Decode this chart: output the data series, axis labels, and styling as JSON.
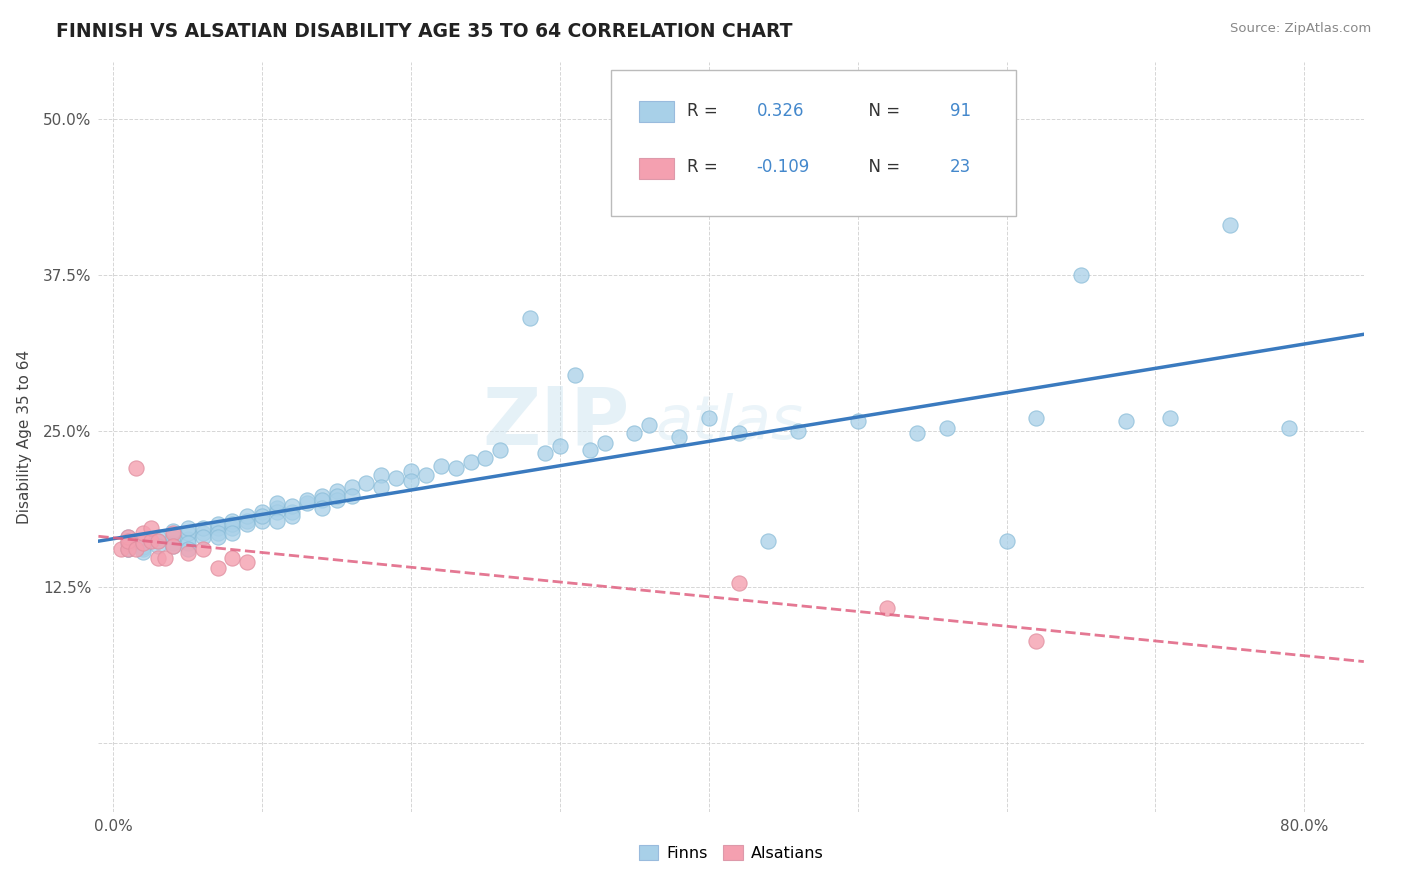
{
  "title": "FINNISH VS ALSATIAN DISABILITY AGE 35 TO 64 CORRELATION CHART",
  "source": "Source: ZipAtlas.com",
  "ylabel": "Disability Age 35 to 64",
  "x_ticks": [
    0.0,
    0.1,
    0.2,
    0.3,
    0.4,
    0.5,
    0.6,
    0.7,
    0.8
  ],
  "x_tick_labels": [
    "0.0%",
    "",
    "",
    "",
    "",
    "",
    "",
    "",
    "80.0%"
  ],
  "y_ticks": [
    0.0,
    0.125,
    0.25,
    0.375,
    0.5
  ],
  "y_tick_labels": [
    "",
    "12.5%",
    "25.0%",
    "37.5%",
    "50.0%"
  ],
  "xlim": [
    -0.01,
    0.84
  ],
  "ylim": [
    -0.055,
    0.545
  ],
  "legend_finn_r": "0.326",
  "legend_finn_n": "91",
  "legend_als_r": "-0.109",
  "legend_als_n": "23",
  "finn_color": "#a8d0e8",
  "als_color": "#f4a0b0",
  "finn_line_color": "#3a7abf",
  "als_line_color": "#e06080",
  "watermark1": "ZIP",
  "watermark2": "atlas",
  "finns_x": [
    0.01,
    0.01,
    0.01,
    0.01,
    0.01,
    0.02,
    0.02,
    0.02,
    0.02,
    0.02,
    0.03,
    0.03,
    0.03,
    0.04,
    0.04,
    0.04,
    0.04,
    0.05,
    0.05,
    0.05,
    0.05,
    0.05,
    0.06,
    0.06,
    0.06,
    0.07,
    0.07,
    0.07,
    0.07,
    0.08,
    0.08,
    0.08,
    0.08,
    0.09,
    0.09,
    0.09,
    0.1,
    0.1,
    0.1,
    0.11,
    0.11,
    0.11,
    0.11,
    0.12,
    0.12,
    0.12,
    0.13,
    0.13,
    0.14,
    0.14,
    0.14,
    0.15,
    0.15,
    0.15,
    0.16,
    0.16,
    0.17,
    0.18,
    0.18,
    0.19,
    0.2,
    0.2,
    0.21,
    0.22,
    0.23,
    0.24,
    0.25,
    0.26,
    0.28,
    0.29,
    0.3,
    0.31,
    0.32,
    0.33,
    0.35,
    0.36,
    0.38,
    0.4,
    0.42,
    0.44,
    0.46,
    0.5,
    0.54,
    0.56,
    0.6,
    0.62,
    0.65,
    0.68,
    0.71,
    0.75,
    0.79
  ],
  "finns_y": [
    0.155,
    0.16,
    0.165,
    0.155,
    0.16,
    0.155,
    0.158,
    0.162,
    0.157,
    0.153,
    0.162,
    0.165,
    0.158,
    0.16,
    0.165,
    0.17,
    0.158,
    0.163,
    0.168,
    0.172,
    0.16,
    0.155,
    0.168,
    0.172,
    0.165,
    0.172,
    0.175,
    0.168,
    0.165,
    0.172,
    0.178,
    0.175,
    0.168,
    0.178,
    0.182,
    0.175,
    0.185,
    0.178,
    0.182,
    0.188,
    0.185,
    0.178,
    0.192,
    0.185,
    0.19,
    0.182,
    0.192,
    0.195,
    0.198,
    0.195,
    0.188,
    0.202,
    0.195,
    0.198,
    0.205,
    0.198,
    0.208,
    0.215,
    0.205,
    0.212,
    0.218,
    0.21,
    0.215,
    0.222,
    0.22,
    0.225,
    0.228,
    0.235,
    0.34,
    0.232,
    0.238,
    0.295,
    0.235,
    0.24,
    0.248,
    0.255,
    0.245,
    0.26,
    0.248,
    0.162,
    0.25,
    0.258,
    0.248,
    0.252,
    0.162,
    0.26,
    0.375,
    0.258,
    0.26,
    0.415,
    0.252
  ],
  "alsatians_x": [
    0.005,
    0.01,
    0.01,
    0.01,
    0.015,
    0.015,
    0.02,
    0.02,
    0.025,
    0.025,
    0.03,
    0.03,
    0.035,
    0.04,
    0.04,
    0.05,
    0.06,
    0.07,
    0.08,
    0.09,
    0.42,
    0.52,
    0.62
  ],
  "alsatians_y": [
    0.155,
    0.155,
    0.165,
    0.162,
    0.22,
    0.155,
    0.16,
    0.168,
    0.162,
    0.172,
    0.162,
    0.148,
    0.148,
    0.168,
    0.158,
    0.152,
    0.155,
    0.14,
    0.148,
    0.145,
    0.128,
    0.108,
    0.082
  ]
}
